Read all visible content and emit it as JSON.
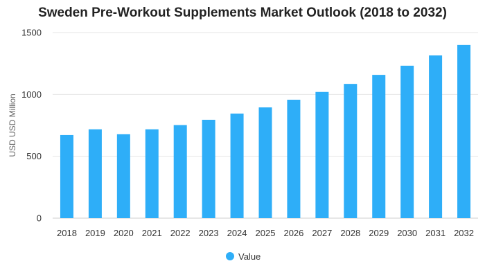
{
  "chart_data": {
    "type": "bar",
    "title": "Sweden Pre-Workout Supplements Market Outlook (2018 to 2032)",
    "xlabel": "",
    "ylabel": "USD USD Million",
    "categories": [
      "2018",
      "2019",
      "2020",
      "2021",
      "2022",
      "2023",
      "2024",
      "2025",
      "2026",
      "2027",
      "2028",
      "2029",
      "2030",
      "2031",
      "2032"
    ],
    "series": [
      {
        "name": "Value",
        "color": "#2EAEF8",
        "values": [
          672,
          718,
          678,
          718,
          752,
          795,
          845,
          895,
          957,
          1020,
          1085,
          1158,
          1232,
          1315,
          1400
        ]
      }
    ],
    "ylim": [
      0,
      1500
    ],
    "yticks": [
      0,
      500,
      1000,
      1500
    ],
    "grid": true,
    "legend": "bottom-center",
    "colors": {
      "bar": "#2EAEF8",
      "grid": "#E6E6E6",
      "axis": "#CCCCCC"
    }
  }
}
